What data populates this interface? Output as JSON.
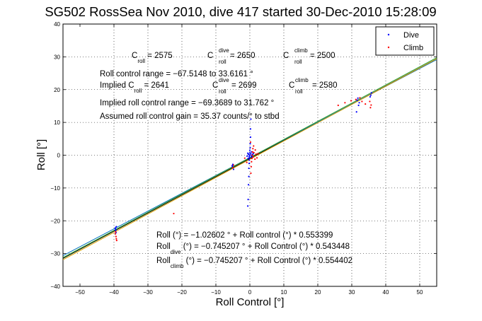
{
  "chart_data": {
    "type": "scatter",
    "title": "SG502 RossSea Nov 2010, dive 417 started 30-Dec-2010 15:28:09",
    "xlabel": "Roll Control [°]",
    "ylabel": "Roll [°]",
    "xlim": [
      -55,
      55
    ],
    "ylim": [
      -40,
      40
    ],
    "xticks": [
      "−50",
      "−40",
      "−30",
      "−20",
      "−10",
      "0",
      "10",
      "20",
      "30",
      "40",
      "50"
    ],
    "yticks": [
      "40",
      "30",
      "20",
      "10",
      "0",
      "−10",
      "−20",
      "−30",
      "−40"
    ],
    "xtick_values": [
      -50,
      -40,
      -30,
      -20,
      -10,
      0,
      10,
      20,
      30,
      40,
      50
    ],
    "ytick_values": [
      40,
      30,
      20,
      10,
      0,
      -10,
      -20,
      -30,
      -40
    ],
    "grid": true,
    "legend_position": "top-right",
    "series": [
      {
        "name": "Dive",
        "color": "#0000ff",
        "marker": "dot",
        "points": [
          [
            -39.6,
            -22.2
          ],
          [
            -39.5,
            -23.0
          ],
          [
            -39.4,
            -23.6
          ],
          [
            -39.3,
            -21.8
          ],
          [
            -39.5,
            -22.6
          ],
          [
            -5.2,
            -3.2
          ],
          [
            -5.0,
            -2.8
          ],
          [
            -4.8,
            -4.3
          ],
          [
            -5.1,
            -3.6
          ],
          [
            -0.6,
            -15.5
          ],
          [
            -0.5,
            -13.5
          ],
          [
            -0.4,
            -9.0
          ],
          [
            -0.3,
            -6.5
          ],
          [
            -0.3,
            -4.0
          ],
          [
            -0.2,
            -2.5
          ],
          [
            -0.2,
            -1.5
          ],
          [
            -0.1,
            -0.8
          ],
          [
            -0.1,
            0.0
          ],
          [
            0.0,
            0.7
          ],
          [
            0.0,
            1.5
          ],
          [
            0.1,
            2.3
          ],
          [
            0.1,
            3.5
          ],
          [
            0.2,
            5.5
          ],
          [
            0.2,
            8.0
          ],
          [
            0.3,
            11.0
          ],
          [
            -0.4,
            0.3
          ],
          [
            0.4,
            -0.2
          ],
          [
            -0.6,
            0.6
          ],
          [
            0.6,
            -0.5
          ],
          [
            -0.2,
            -0.4
          ],
          [
            0.3,
            0.4
          ],
          [
            0.8,
            0.2
          ],
          [
            -0.8,
            -0.3
          ],
          [
            0.5,
            1.0
          ],
          [
            -0.5,
            -1.0
          ],
          [
            1.0,
            0.5
          ],
          [
            31.6,
            16.8
          ],
          [
            31.8,
            17.4
          ],
          [
            32.0,
            15.2
          ],
          [
            31.4,
            13.2
          ],
          [
            32.2,
            16.0
          ],
          [
            35.6,
            18.3
          ],
          [
            35.8,
            19.0
          ],
          [
            35.4,
            17.8
          ]
        ]
      },
      {
        "name": "Climb",
        "color": "#ff0000",
        "marker": "dot",
        "points": [
          [
            -39.6,
            -24.0
          ],
          [
            -39.4,
            -24.8
          ],
          [
            -39.3,
            -25.5
          ],
          [
            -39.5,
            -23.4
          ],
          [
            -39.2,
            -26.0
          ],
          [
            -22.4,
            -17.8
          ],
          [
            -5.0,
            -3.8
          ],
          [
            -4.8,
            -3.0
          ],
          [
            0.4,
            -3.5
          ],
          [
            0.5,
            -2.0
          ],
          [
            0.6,
            -1.0
          ],
          [
            0.7,
            0.0
          ],
          [
            0.8,
            1.0
          ],
          [
            0.9,
            2.0
          ],
          [
            1.0,
            -0.5
          ],
          [
            1.2,
            0.8
          ],
          [
            1.5,
            -1.2
          ],
          [
            1.8,
            0.3
          ],
          [
            2.1,
            -0.8
          ],
          [
            2.4,
            0.5
          ],
          [
            0.3,
            -5.5
          ],
          [
            0.2,
            4.0
          ],
          [
            1.1,
            2.8
          ],
          [
            1.6,
            1.6
          ],
          [
            -0.9,
            -2.2
          ],
          [
            -1.5,
            -0.9
          ],
          [
            26.0,
            15.2
          ],
          [
            28.0,
            16.0
          ],
          [
            29.8,
            16.6
          ],
          [
            31.2,
            17.0
          ],
          [
            32.4,
            17.5
          ],
          [
            33.0,
            16.4
          ],
          [
            34.0,
            15.6
          ],
          [
            35.5,
            14.5
          ],
          [
            35.7,
            15.3
          ],
          [
            35.3,
            16.4
          ]
        ]
      }
    ],
    "fit_lines": [
      {
        "color": "#000000",
        "intercept": -1.02602,
        "slope": 0.553399
      },
      {
        "color": "#0072bd",
        "intercept": -0.745207,
        "slope": 0.543448
      },
      {
        "color": "#2ca02c",
        "intercept": -0.745207,
        "slope": 0.554402
      },
      {
        "color": "#d9a400",
        "intercept": -1.25,
        "slope": 0.557
      }
    ]
  },
  "annotations": {
    "c_roll": {
      "base": "C",
      "sub": "roll",
      "value": " = 2575"
    },
    "c_roll_dive": {
      "base": "C",
      "sup": "dive",
      "sub": "roll",
      "value": " = 2650"
    },
    "c_roll_climb": {
      "base": "C",
      "sup": "climb",
      "sub": "roll",
      "value": " = 2500"
    },
    "roll_control_range": "Roll control range = −67.5148 to 33.6161 °",
    "implied_c_roll": {
      "prefix": "Implied C",
      "sub": "roll",
      "value": " = 2641"
    },
    "implied_c_roll_dive": {
      "base": "C",
      "sup": "dive",
      "sub": "roll",
      "value": " = 2699"
    },
    "implied_c_roll_climb": {
      "base": "C",
      "sup": "climb",
      "sub": "roll",
      "value": " = 2580"
    },
    "implied_roll_control_range": "Implied roll control range = −69.3689 to 31.762 °",
    "assumed_gain": "Assumed roll control gain = 35.37 counts/° to stbd",
    "fit_all": "Roll (°) = −1.02602 ° + Roll control (°) * 0.553399",
    "fit_dive": {
      "prefix": "Roll",
      "sub": "dive",
      "value": " (°) = −0.745207 ° + Roll Control (°) * 0.543448"
    },
    "fit_climb": {
      "prefix": "Roll",
      "sub": "climb",
      "value": " (°) = −0.745207 ° + Roll Control (°) * 0.554402"
    }
  }
}
